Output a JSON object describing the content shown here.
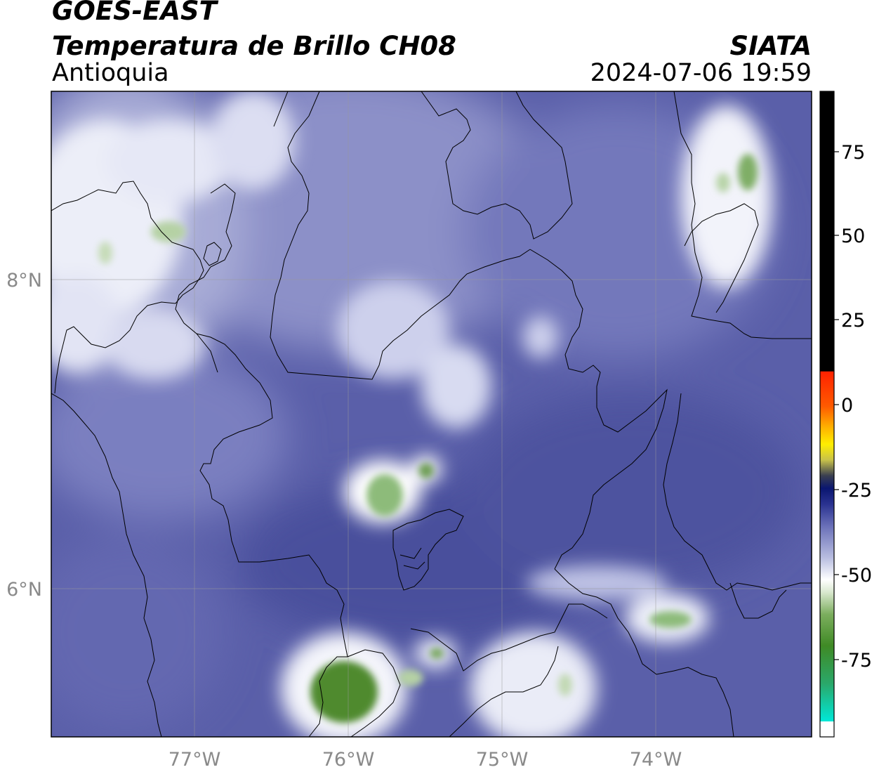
{
  "header": {
    "satellite": "GOES-EAST",
    "product": "Temperatura de Brillo CH08",
    "region": "Antioquia",
    "organization": "SIATA",
    "timestamp": "2024-07-06 19:59"
  },
  "map": {
    "lat_ticks": [
      {
        "label": "8°N",
        "value": 8
      },
      {
        "label": "6°N",
        "value": 6
      }
    ],
    "lon_ticks": [
      {
        "label": "77°W",
        "value": -77
      },
      {
        "label": "76°W",
        "value": -76
      },
      {
        "label": "75°W",
        "value": -75
      },
      {
        "label": "74°W",
        "value": -74
      }
    ],
    "lon_range": [
      -77.94,
      -72.98
    ],
    "lat_range": [
      5.04,
      9.24
    ]
  },
  "colorbar": {
    "min": -95,
    "max": 90,
    "ticks": [
      {
        "label": "75",
        "value": 75
      },
      {
        "label": "50",
        "value": 50
      },
      {
        "label": "25",
        "value": 25
      },
      {
        "label": "0",
        "value": 0
      },
      {
        "label": "-25",
        "value": -25
      },
      {
        "label": "-50",
        "value": -50
      },
      {
        "label": "-75",
        "value": -75
      }
    ],
    "colors": {
      "warm": "#000000",
      "red": "#ff2a00",
      "orange": "#ff9a00",
      "yellow": "#ffee00",
      "navy": "#0a1a80",
      "slate": "#4a4f9e",
      "white": "#ffffff",
      "green": "#4a8a2a",
      "cyan": "#00e6d6"
    }
  }
}
